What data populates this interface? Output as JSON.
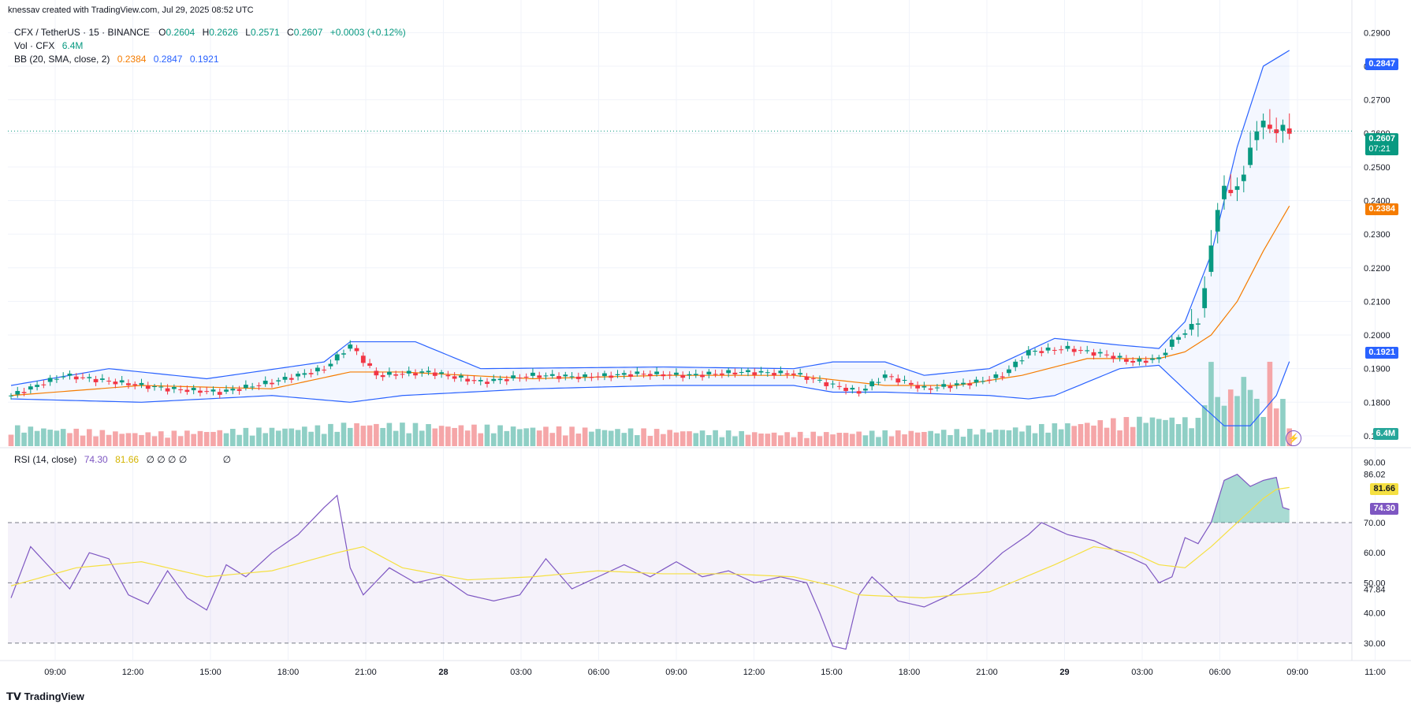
{
  "watermark": "knessav created with TradingView.com, Jul 29, 2025 08:52 UTC",
  "symbol": {
    "name": "CFX / TetherUS · 15 · BINANCE",
    "o_label": "O",
    "o": "0.2604",
    "h_label": "H",
    "h": "0.2626",
    "l_label": "L",
    "l": "0.2571",
    "c_label": "C",
    "c": "0.2607",
    "change": "+0.0003 (+0.12%)"
  },
  "volume_legend": {
    "label": "Vol · CFX",
    "value": "6.4M"
  },
  "bb_legend": {
    "label": "BB (20, SMA, close, 2)",
    "basis": "0.2384",
    "upper": "0.2847",
    "lower": "0.1921"
  },
  "rsi_legend": {
    "label": "RSI (14, close)",
    "rsi": "74.30",
    "ma": "81.66",
    "extra": "∅ ∅ ∅ ∅",
    "extra2": "∅"
  },
  "price_tags": {
    "upper": "0.2847",
    "last": "0.2607",
    "countdown": "07:21",
    "basis": "0.2384",
    "lower": "0.1921",
    "volume": "6.4M"
  },
  "rsi_tags": {
    "ma": "81.66",
    "rsi": "74.30"
  },
  "logo_text": "TradingView",
  "colors": {
    "up": "#089981",
    "down": "#f23645",
    "basis": "#f57c00",
    "band": "#2962ff",
    "rsi": "#7e57c2",
    "rsi_ma": "#f5e042",
    "vol_up": "#8fcfc5",
    "vol_down": "#f5a6a8"
  },
  "chart_data": [
    {
      "type": "candlestick",
      "title": "CFX / TetherUS · 15 · BINANCE",
      "ylim": [
        0.166,
        0.295
      ],
      "y_ticks": [
        "0.2900",
        "0.2800",
        "0.2700",
        "0.2600",
        "0.2500",
        "0.2400",
        "0.2300",
        "0.2200",
        "0.2100",
        "0.2000",
        "0.1900",
        "0.1800",
        "0.1700"
      ],
      "x_ticks": [
        "09:00",
        "12:00",
        "15:00",
        "18:00",
        "21:00",
        "28",
        "03:00",
        "06:00",
        "09:00",
        "12:00",
        "15:00",
        "18:00",
        "21:00",
        "29",
        "03:00",
        "06:00",
        "09:00",
        "11:00"
      ],
      "close_keypoints": [
        [
          0,
          0.182
        ],
        [
          8,
          0.188
        ],
        [
          16,
          0.186
        ],
        [
          24,
          0.184
        ],
        [
          32,
          0.183
        ],
        [
          40,
          0.186
        ],
        [
          48,
          0.19
        ],
        [
          52,
          0.197
        ],
        [
          56,
          0.188
        ],
        [
          64,
          0.189
        ],
        [
          72,
          0.186
        ],
        [
          80,
          0.188
        ],
        [
          88,
          0.1875
        ],
        [
          96,
          0.1885
        ],
        [
          104,
          0.188
        ],
        [
          112,
          0.189
        ],
        [
          120,
          0.1885
        ],
        [
          126,
          0.185
        ],
        [
          130,
          0.183
        ],
        [
          134,
          0.188
        ],
        [
          140,
          0.184
        ],
        [
          148,
          0.186
        ],
        [
          152,
          0.188
        ],
        [
          156,
          0.195
        ],
        [
          162,
          0.196
        ],
        [
          168,
          0.194
        ],
        [
          172,
          0.192
        ],
        [
          176,
          0.193
        ],
        [
          178,
          0.198
        ],
        [
          180,
          0.201
        ],
        [
          182,
          0.204
        ],
        [
          183,
          0.214
        ],
        [
          184,
          0.226
        ],
        [
          185,
          0.238
        ],
        [
          186,
          0.244
        ],
        [
          187,
          0.242
        ],
        [
          188,
          0.245
        ],
        [
          189,
          0.247
        ],
        [
          190,
          0.256
        ],
        [
          191,
          0.261
        ],
        [
          192,
          0.263
        ],
        [
          193,
          0.262
        ],
        [
          194,
          0.26
        ],
        [
          195,
          0.262
        ],
        [
          196,
          0.2607
        ]
      ],
      "bands_keypoints": {
        "upper": [
          [
            0,
            0.185
          ],
          [
            15,
            0.19
          ],
          [
            30,
            0.187
          ],
          [
            48,
            0.192
          ],
          [
            52,
            0.198
          ],
          [
            62,
            0.198
          ],
          [
            72,
            0.19
          ],
          [
            100,
            0.1905
          ],
          [
            120,
            0.19
          ],
          [
            126,
            0.192
          ],
          [
            134,
            0.192
          ],
          [
            140,
            0.188
          ],
          [
            150,
            0.19
          ],
          [
            160,
            0.199
          ],
          [
            170,
            0.197
          ],
          [
            176,
            0.196
          ],
          [
            180,
            0.204
          ],
          [
            184,
            0.224
          ],
          [
            188,
            0.256
          ],
          [
            192,
            0.28
          ],
          [
            196,
            0.2847
          ]
        ],
        "basis": [
          [
            0,
            0.182
          ],
          [
            20,
            0.185
          ],
          [
            40,
            0.184
          ],
          [
            52,
            0.189
          ],
          [
            60,
            0.189
          ],
          [
            80,
            0.187
          ],
          [
            100,
            0.188
          ],
          [
            120,
            0.188
          ],
          [
            134,
            0.185
          ],
          [
            145,
            0.185
          ],
          [
            155,
            0.188
          ],
          [
            165,
            0.193
          ],
          [
            176,
            0.193
          ],
          [
            180,
            0.195
          ],
          [
            184,
            0.2
          ],
          [
            188,
            0.21
          ],
          [
            192,
            0.225
          ],
          [
            196,
            0.2384
          ]
        ],
        "lower": [
          [
            0,
            0.181
          ],
          [
            20,
            0.18
          ],
          [
            40,
            0.182
          ],
          [
            52,
            0.18
          ],
          [
            60,
            0.182
          ],
          [
            80,
            0.184
          ],
          [
            100,
            0.185
          ],
          [
            120,
            0.185
          ],
          [
            126,
            0.183
          ],
          [
            134,
            0.183
          ],
          [
            150,
            0.182
          ],
          [
            156,
            0.181
          ],
          [
            160,
            0.182
          ],
          [
            170,
            0.19
          ],
          [
            176,
            0.191
          ],
          [
            182,
            0.18
          ],
          [
            186,
            0.173
          ],
          [
            190,
            0.173
          ],
          [
            194,
            0.182
          ],
          [
            196,
            0.1921
          ]
        ]
      },
      "volume_keypoints": [
        [
          0,
          0.3
        ],
        [
          20,
          0.2
        ],
        [
          48,
          0.3
        ],
        [
          52,
          0.35
        ],
        [
          120,
          0.2
        ],
        [
          150,
          0.25
        ],
        [
          176,
          0.45
        ],
        [
          182,
          0.4
        ],
        [
          183,
          1.0
        ],
        [
          184,
          1.2
        ],
        [
          185,
          1.0
        ],
        [
          186,
          0.6
        ],
        [
          187,
          1.0
        ],
        [
          188,
          0.8
        ],
        [
          189,
          1.1
        ],
        [
          190,
          1.0
        ],
        [
          191,
          0.7
        ],
        [
          192,
          0.6
        ],
        [
          193,
          1.2
        ],
        [
          196,
          0.4
        ]
      ],
      "note_bars": 197
    },
    {
      "type": "line",
      "title": "RSI (14, close)",
      "ylim": [
        25,
        93
      ],
      "y_ticks": [
        "90.00",
        "86.02",
        "70.00",
        "60.00",
        "50.00",
        "47.84",
        "40.00",
        "30.00"
      ],
      "series": [
        {
          "name": "RSI",
          "keypoints": [
            [
              0,
              45
            ],
            [
              3,
              62
            ],
            [
              6,
              55
            ],
            [
              9,
              48
            ],
            [
              12,
              60
            ],
            [
              15,
              58
            ],
            [
              18,
              46
            ],
            [
              21,
              43
            ],
            [
              24,
              54
            ],
            [
              27,
              45
            ],
            [
              30,
              41
            ],
            [
              33,
              56
            ],
            [
              36,
              52
            ],
            [
              40,
              60
            ],
            [
              44,
              66
            ],
            [
              48,
              75
            ],
            [
              50,
              79
            ],
            [
              52,
              55
            ],
            [
              54,
              46
            ],
            [
              58,
              55
            ],
            [
              62,
              50
            ],
            [
              66,
              52
            ],
            [
              70,
              46
            ],
            [
              74,
              44
            ],
            [
              78,
              46
            ],
            [
              82,
              58
            ],
            [
              86,
              48
            ],
            [
              90,
              52
            ],
            [
              94,
              56
            ],
            [
              98,
              52
            ],
            [
              102,
              57
            ],
            [
              106,
              52
            ],
            [
              110,
              54
            ],
            [
              114,
              50
            ],
            [
              118,
              52
            ],
            [
              122,
              50
            ],
            [
              124,
              40
            ],
            [
              126,
              29
            ],
            [
              128,
              28
            ],
            [
              130,
              46
            ],
            [
              132,
              52
            ],
            [
              136,
              44
            ],
            [
              140,
              42
            ],
            [
              144,
              46
            ],
            [
              148,
              52
            ],
            [
              152,
              60
            ],
            [
              156,
              66
            ],
            [
              158,
              70
            ],
            [
              162,
              66
            ],
            [
              166,
              64
            ],
            [
              170,
              60
            ],
            [
              174,
              56
            ],
            [
              176,
              50
            ],
            [
              178,
              52
            ],
            [
              180,
              65
            ],
            [
              182,
              63
            ],
            [
              184,
              70
            ],
            [
              186,
              84
            ],
            [
              188,
              86
            ],
            [
              190,
              82
            ],
            [
              192,
              84
            ],
            [
              194,
              85
            ],
            [
              195,
              75
            ],
            [
              196,
              74.3
            ]
          ]
        },
        {
          "name": "RSI MA",
          "keypoints": [
            [
              0,
              49
            ],
            [
              10,
              55
            ],
            [
              20,
              57
            ],
            [
              30,
              52
            ],
            [
              40,
              54
            ],
            [
              50,
              60
            ],
            [
              54,
              62
            ],
            [
              60,
              55
            ],
            [
              70,
              51
            ],
            [
              80,
              52
            ],
            [
              90,
              54
            ],
            [
              100,
              53
            ],
            [
              110,
              53
            ],
            [
              120,
              52
            ],
            [
              126,
              49
            ],
            [
              130,
              46
            ],
            [
              140,
              45
            ],
            [
              150,
              47
            ],
            [
              160,
              56
            ],
            [
              166,
              62
            ],
            [
              172,
              60
            ],
            [
              176,
              56
            ],
            [
              180,
              55
            ],
            [
              184,
              62
            ],
            [
              188,
              70
            ],
            [
              192,
              78
            ],
            [
              194,
              81
            ],
            [
              196,
              81.66
            ]
          ]
        }
      ],
      "bands": {
        "upper": 70,
        "mid": 50,
        "lower": 30
      }
    }
  ]
}
